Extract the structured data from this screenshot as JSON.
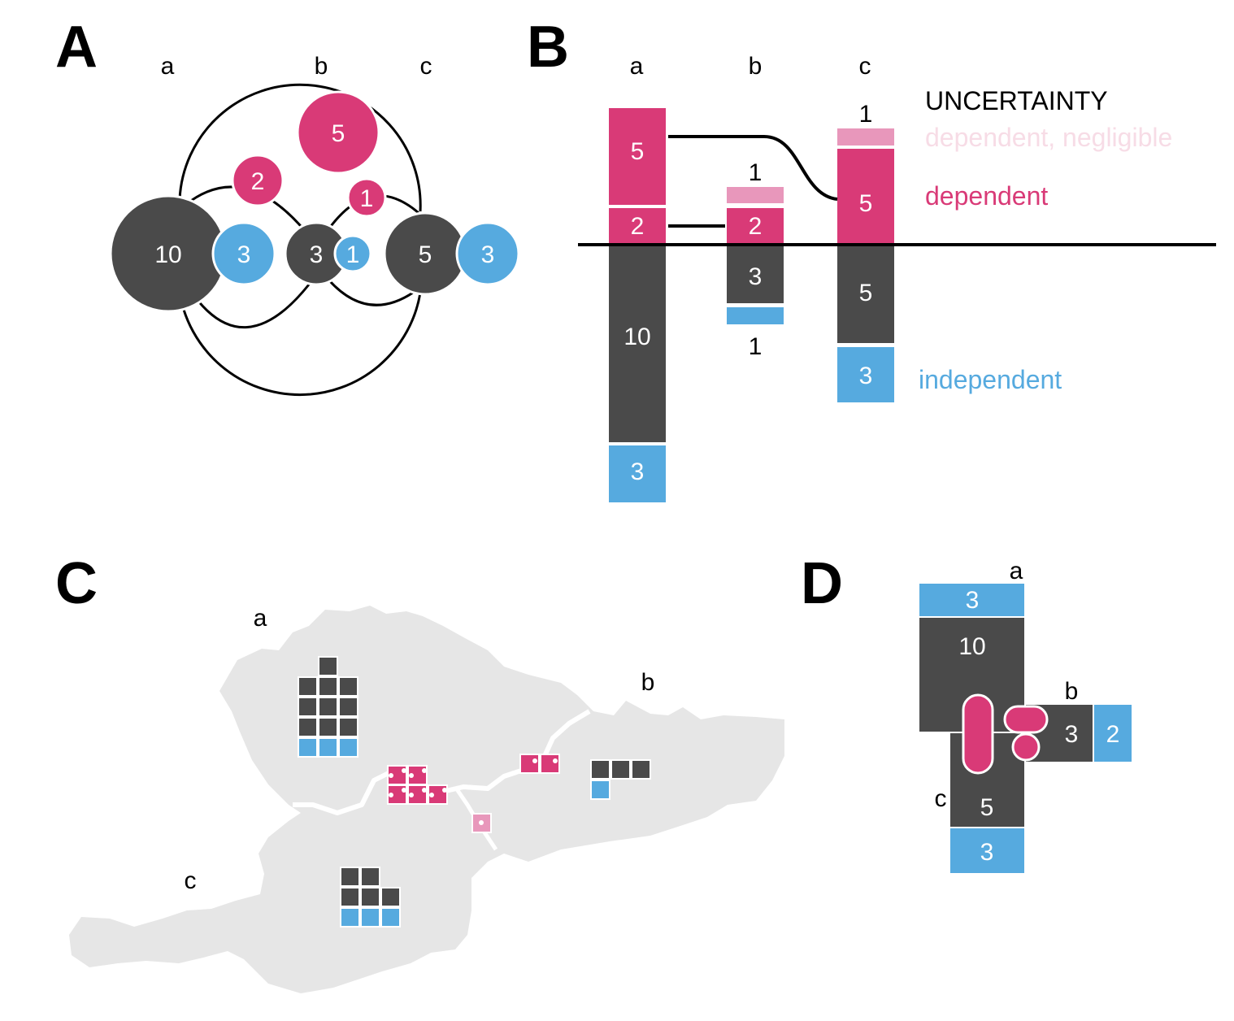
{
  "colors": {
    "certain": "#4a4a4a",
    "dependent": "#d93a77",
    "negligible": "#e897bb",
    "negligible_text": "#f7dce6",
    "independent": "#56aadf",
    "map_land": "#e6e6e6",
    "line": "#000000"
  },
  "panels": {
    "A": "A",
    "B": "B",
    "C": "C",
    "D": "D"
  },
  "panel_a": {
    "region_labels": [
      "a",
      "b",
      "c"
    ],
    "nodes": {
      "a_certain": "10",
      "a_indep": "3",
      "b_certain": "3",
      "b_indep": "1",
      "c_certain": "5",
      "c_indep": "3",
      "ac_dep": "5",
      "ab_dep": "2",
      "bc_dep": "1"
    }
  },
  "panel_b": {
    "column_labels": [
      "a",
      "b",
      "c"
    ],
    "segments": {
      "a_dep5": "5",
      "a_dep2": "2",
      "a_certain": "10",
      "a_indep": "3",
      "b_dep2": "2",
      "b_certain": "3",
      "c_dep5": "5",
      "c_certain": "5",
      "c_indep": "3"
    },
    "outside_labels": {
      "b_neg": "1",
      "b_indep": "1",
      "c_neg": "1"
    },
    "legend": {
      "title": "UNCERTAINTY",
      "negligible": "dependent, negligible",
      "dependent": "dependent",
      "independent": "independent"
    }
  },
  "panel_c": {
    "region_labels": [
      "a",
      "b",
      "c"
    ],
    "counts": {
      "a_certain": 10,
      "a_indep": 3,
      "b_certain": 3,
      "b_indep": 1,
      "c_certain": 5,
      "c_indep": 3,
      "ac_dep": 5,
      "ab_dep": 2,
      "bc_dep": 1
    }
  },
  "panel_d": {
    "region_labels": [
      "a",
      "b",
      "c"
    ],
    "blocks": {
      "a_indep": "3",
      "a_certain": "10",
      "b_certain": "3",
      "b_indep": "2",
      "c_certain": "5",
      "c_indep": "3"
    }
  }
}
